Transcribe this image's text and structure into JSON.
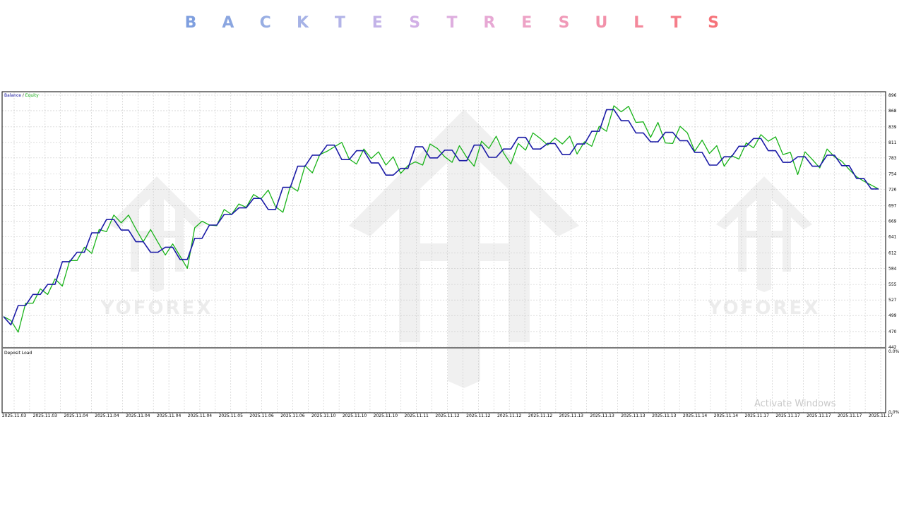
{
  "page": {
    "title": "BACKTESTRESULTS",
    "title_colors": [
      "#7f9fdf",
      "#8ba6e0",
      "#98aee3",
      "#a6b2e6",
      "#b3b4e8",
      "#c3b3e8",
      "#d2b0e6",
      "#deaedf",
      "#e7a8d4",
      "#eda3c6",
      "#f09ab8",
      "#f291aa",
      "#f4889b",
      "#f57e8a",
      "#f6737a"
    ]
  },
  "watermark": {
    "text": "YOFOREX",
    "color": "#ececec"
  },
  "os_notice": {
    "text": "Activate Windows"
  },
  "colors": {
    "balance": "#1a1aa6",
    "equity": "#19b319",
    "grid": "#c8c8c8",
    "border": "#000000"
  },
  "chart_data": [
    {
      "type": "line",
      "legend": {
        "balance": "Balance",
        "separator": " / ",
        "equity": "Equity",
        "placement": "top-left"
      },
      "ylim": [
        442,
        901
      ],
      "y_ticks": [
        896,
        868,
        839,
        811,
        783,
        754,
        726,
        697,
        669,
        641,
        612,
        584,
        555,
        527,
        499,
        470,
        442
      ],
      "x_ticks": [
        "2025.11.03",
        "2025.11.03",
        "2025.11.04",
        "2025.11.04",
        "2025.11.04",
        "2025.11.04",
        "2025.11.04",
        "2025.11.05",
        "2025.11.06",
        "2025.11.06",
        "2025.11.10",
        "2025.11.10",
        "2025.11.10",
        "2025.11.11",
        "2025.11.12",
        "2025.11.12",
        "2025.11.12",
        "2025.11.12",
        "2025.11.13",
        "2025.11.13",
        "2025.11.13",
        "2025.11.13",
        "2025.11.14",
        "2025.11.14",
        "2025.11.17",
        "2025.11.17",
        "2025.11.17",
        "2025.11.17",
        "2025.11.17"
      ],
      "grid": true,
      "series": [
        {
          "name": "Balance",
          "values": [
            497,
            482,
            517,
            517,
            537,
            537,
            555,
            555,
            596,
            596,
            613,
            613,
            648,
            648,
            672,
            672,
            653,
            653,
            632,
            632,
            613,
            613,
            622,
            622,
            600,
            600,
            638,
            638,
            662,
            662,
            681,
            681,
            693,
            693,
            710,
            710,
            690,
            690,
            730,
            730,
            768,
            768,
            788,
            788,
            806,
            806,
            780,
            780,
            796,
            796,
            774,
            774,
            752,
            752,
            764,
            764,
            803,
            803,
            783,
            783,
            797,
            797,
            778,
            778,
            806,
            806,
            784,
            784,
            799,
            799,
            820,
            820,
            799,
            799,
            809,
            809,
            789,
            789,
            808,
            808,
            831,
            831,
            870,
            870,
            850,
            850,
            828,
            828,
            812,
            812,
            829,
            829,
            814,
            814,
            793,
            793,
            770,
            770,
            785,
            785,
            804,
            804,
            818,
            818,
            796,
            796,
            775,
            775,
            785,
            785,
            768,
            768,
            788,
            788,
            769,
            769,
            746,
            746,
            727,
            727
          ]
        },
        {
          "name": "Equity",
          "values": [
            497,
            490,
            469,
            521,
            521,
            547,
            537,
            565,
            552,
            598,
            598,
            622,
            611,
            654,
            650,
            680,
            666,
            680,
            655,
            632,
            654,
            631,
            608,
            628,
            606,
            584,
            657,
            669,
            662,
            661,
            690,
            681,
            700,
            694,
            717,
            709,
            725,
            695,
            685,
            732,
            723,
            769,
            756,
            789,
            795,
            803,
            811,
            781,
            772,
            799,
            782,
            794,
            770,
            785,
            755,
            769,
            776,
            770,
            808,
            800,
            785,
            775,
            805,
            784,
            768,
            813,
            800,
            822,
            792,
            772,
            809,
            797,
            828,
            818,
            806,
            819,
            808,
            822,
            790,
            812,
            804,
            840,
            831,
            877,
            866,
            876,
            847,
            848,
            820,
            847,
            810,
            809,
            840,
            828,
            795,
            815,
            791,
            805,
            768,
            787,
            781,
            810,
            801,
            825,
            813,
            821,
            789,
            793,
            753,
            794,
            780,
            765,
            799,
            785,
            777,
            762,
            749,
            741,
            734,
            727
          ]
        }
      ]
    },
    {
      "type": "area",
      "title": "Deposit Load",
      "y_ticks": [
        "0.0%",
        "0.0%"
      ],
      "values": []
    }
  ]
}
